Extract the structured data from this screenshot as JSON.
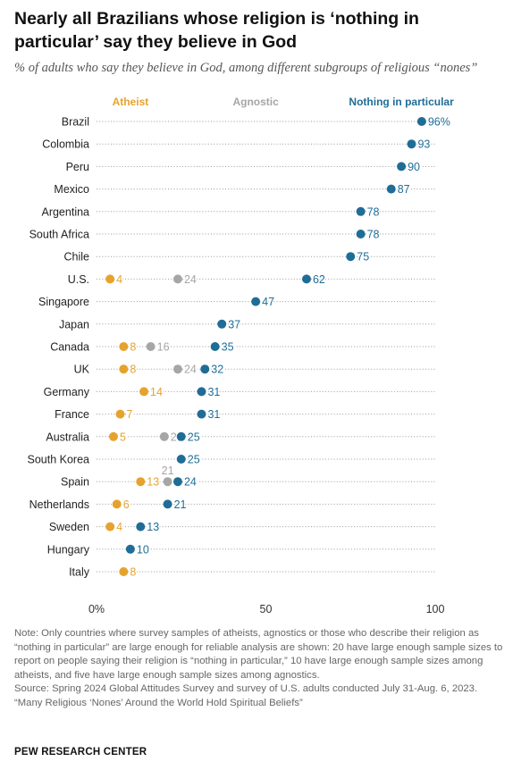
{
  "title": "Nearly all Brazilians whose religion is ‘nothing in particular’ say they believe in God",
  "subtitle": "% of adults who say they believe in God, among different subgroups of religious “nones”",
  "note": "Note: Only countries where survey samples of atheists, agnostics or those who describe their religion as “nothing in particular” are large enough for reliable analysis are shown: 20 have large enough sample sizes to report on people saying their religion is “nothing in particular,” 10 have large enough sample sizes among atheists, and five have large enough sample sizes among agnostics.",
  "source": "Source: Spring 2024 Global Attitudes Survey and survey of U.S. adults conducted July 31-Aug. 6, 2023.",
  "report": "“Many Religious ‘Nones’ Around the World Hold Spiritual Beliefs”",
  "brand": "PEW RESEARCH CENTER",
  "colors": {
    "atheist": "#e5a32d",
    "agnostic": "#a6a6a6",
    "nothing": "#1f6d96",
    "dots": "#9a9a9a"
  },
  "chart_data": {
    "type": "scatter",
    "categories": [
      "Brazil",
      "Colombia",
      "Peru",
      "Mexico",
      "Argentina",
      "South Africa",
      "Chile",
      "U.S.",
      "Singapore",
      "Japan",
      "Canada",
      "UK",
      "Germany",
      "France",
      "Australia",
      "South Korea",
      "Spain",
      "Netherlands",
      "Sweden",
      "Hungary",
      "Italy"
    ],
    "series": [
      {
        "name": "Atheist",
        "values": [
          null,
          null,
          null,
          null,
          null,
          null,
          null,
          4,
          null,
          null,
          8,
          8,
          14,
          7,
          5,
          null,
          13,
          6,
          4,
          null,
          8
        ]
      },
      {
        "name": "Agnostic",
        "values": [
          null,
          null,
          null,
          null,
          null,
          null,
          null,
          24,
          null,
          null,
          16,
          24,
          null,
          null,
          20,
          null,
          21,
          null,
          null,
          null,
          null
        ]
      },
      {
        "name": "Nothing in particular",
        "values": [
          96,
          93,
          90,
          87,
          78,
          78,
          75,
          62,
          47,
          37,
          35,
          32,
          31,
          31,
          25,
          25,
          24,
          21,
          13,
          10,
          null
        ]
      }
    ],
    "first_label_suffix": "%",
    "xlim": [
      0,
      100
    ],
    "xticks": [
      "0%",
      "50",
      "100"
    ]
  }
}
